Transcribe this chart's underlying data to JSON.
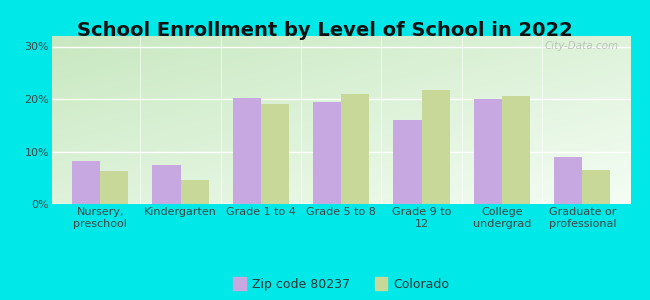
{
  "title": "School Enrollment by Level of School in 2022",
  "categories": [
    "Nursery,\npreschool",
    "Kindergarten",
    "Grade 1 to 4",
    "Grade 5 to 8",
    "Grade 9 to\n12",
    "College\nundergrad",
    "Graduate or\nprofessional"
  ],
  "zip_values": [
    8.2,
    7.5,
    20.2,
    19.5,
    16.0,
    20.0,
    9.0
  ],
  "co_values": [
    6.2,
    4.5,
    19.0,
    21.0,
    21.8,
    20.5,
    6.5
  ],
  "zip_color": "#c8a8e0",
  "co_color": "#c8d898",
  "ylim": [
    0,
    32
  ],
  "yticks": [
    0,
    10,
    20,
    30
  ],
  "ytick_labels": [
    "0%",
    "10%",
    "20%",
    "30%"
  ],
  "background_outer": "#00e8e8",
  "grad_top_left": "#c8e8c0",
  "grad_bottom_right": "#f4fdf4",
  "zip_label": "Zip code 80237",
  "co_label": "Colorado",
  "watermark": "City-Data.com",
  "title_fontsize": 14,
  "tick_fontsize": 8,
  "legend_fontsize": 9,
  "bar_width": 0.35
}
